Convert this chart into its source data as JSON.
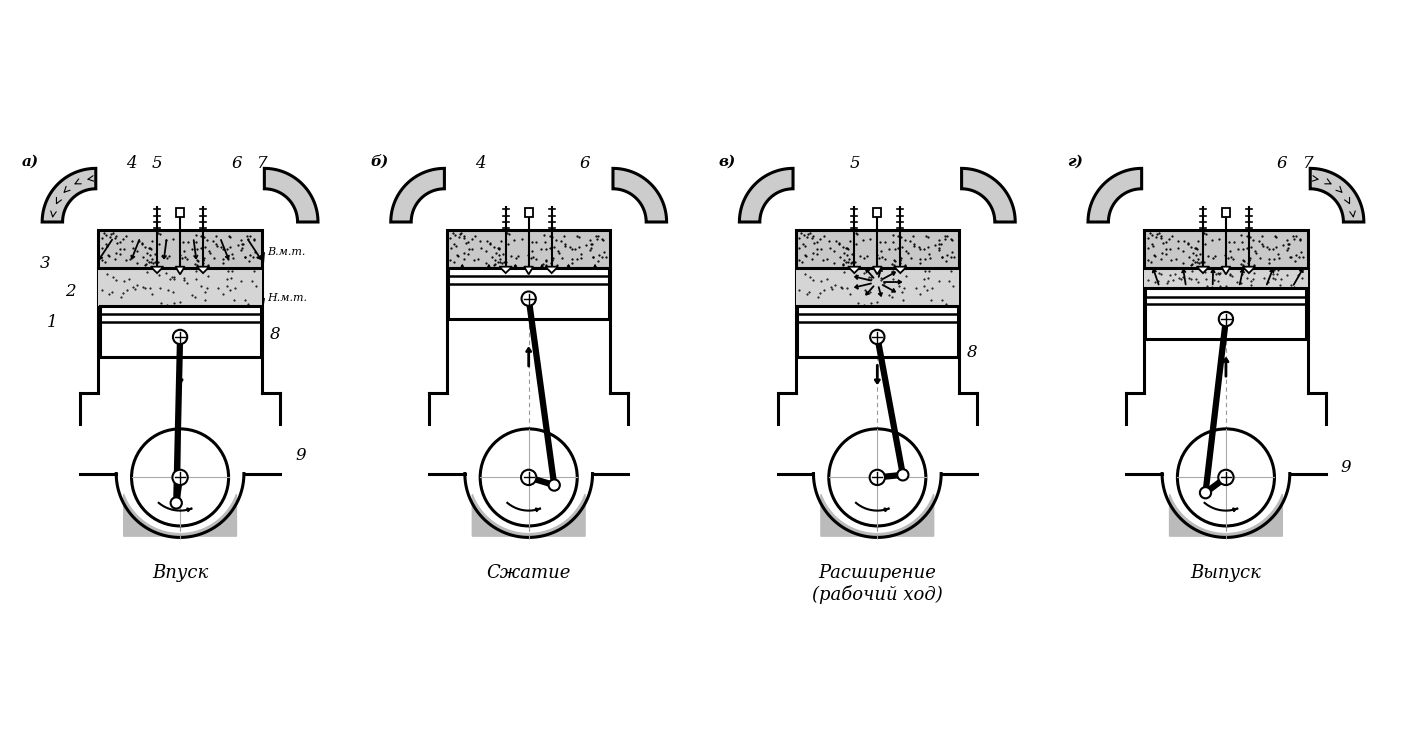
{
  "background_color": "#ffffff",
  "line_color": "#000000",
  "stages": [
    {
      "label": "а)",
      "title": "Впуск"
    },
    {
      "label": "б)",
      "title": "Сжатие"
    },
    {
      "label": "в)",
      "title": "Расширение\n(рабочий ход)"
    },
    {
      "label": "г)",
      "title": "Выпуск"
    }
  ],
  "font_size_label": 11,
  "font_size_num": 12,
  "font_size_title": 13,
  "font_size_vmt": 8
}
